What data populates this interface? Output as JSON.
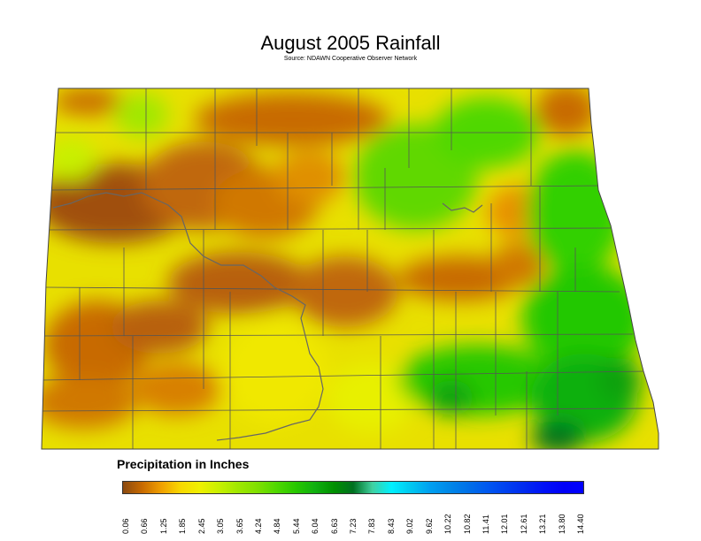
{
  "title": "August 2005 Rainfall",
  "source": "Source: NDAWN Cooperative Observer Network",
  "legend": {
    "title": "Precipitation in Inches",
    "ticks": [
      "0.06",
      "0.66",
      "1.25",
      "1.85",
      "2.45",
      "3.05",
      "3.65",
      "4.24",
      "4.84",
      "5.44",
      "6.04",
      "6.63",
      "7.23",
      "7.83",
      "8.43",
      "9.02",
      "9.62",
      "10.22",
      "10.82",
      "11.41",
      "12.01",
      "12.61",
      "13.21",
      "13.80",
      "14.40"
    ],
    "colors": [
      "#8a4a10",
      "#c86a00",
      "#f0a000",
      "#f8d800",
      "#f0f000",
      "#c8f000",
      "#a0e800",
      "#80e000",
      "#50d800",
      "#28c800",
      "#10b010",
      "#009000",
      "#007020",
      "#40d0a0",
      "#00f0ff",
      "#00c8f0",
      "#00a0f0",
      "#0088e8",
      "#0070e8",
      "#0058f0",
      "#0040f0",
      "#0028f0",
      "#0010f8",
      "#0000f8",
      "#0000ff"
    ]
  },
  "map": {
    "region": "North Dakota",
    "dry_color": "#b85a08",
    "mid_color": "#f0e000",
    "wet_color": "#10b010"
  }
}
